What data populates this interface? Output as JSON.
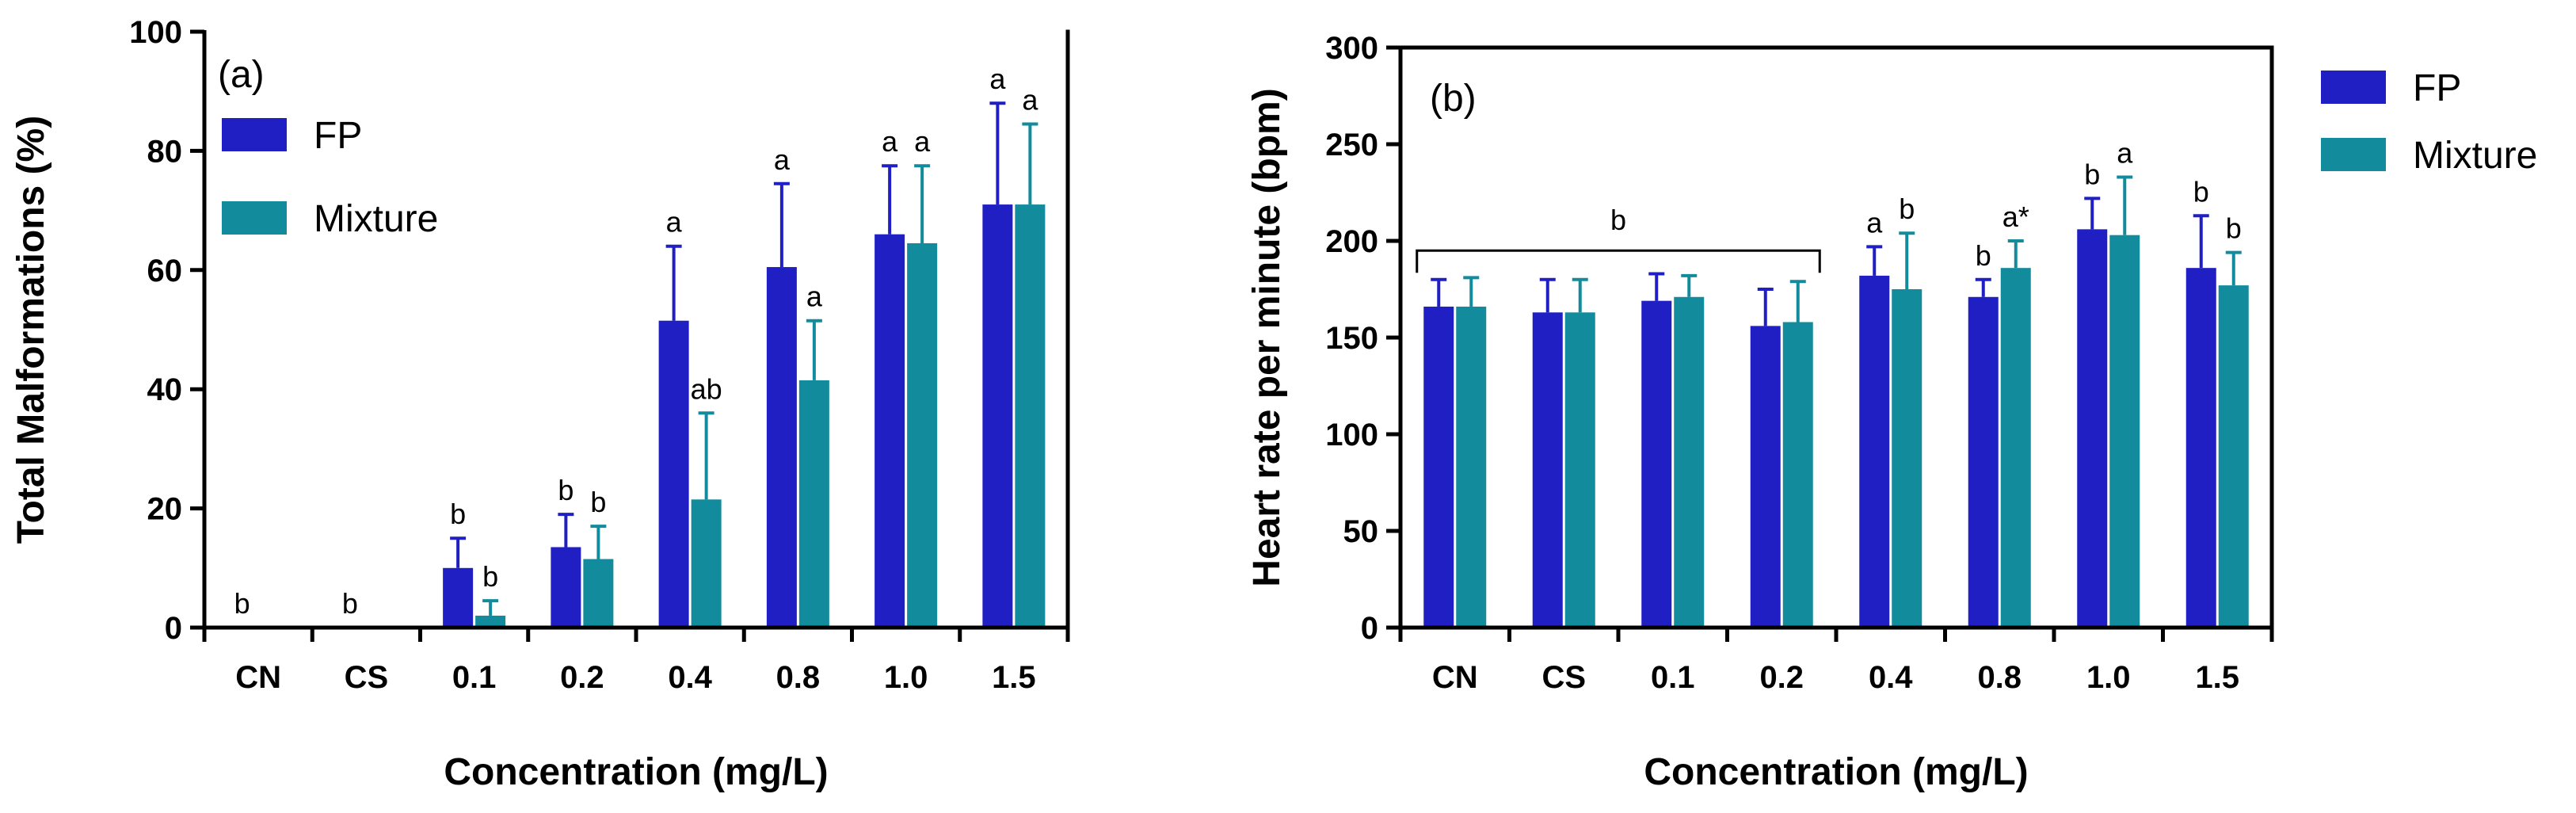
{
  "chart_data": [
    {
      "type": "bar",
      "panel_label": "(a)",
      "title": "",
      "xlabel": "Concentration (mg/L)",
      "ylabel": "Total Malformations (%)",
      "ylim": [
        0,
        100
      ],
      "yticks": [
        0,
        20,
        40,
        60,
        80,
        100
      ],
      "categories": [
        "CN",
        "CS",
        "0.1",
        "0.2",
        "0.4",
        "0.8",
        "1.0",
        "1.5"
      ],
      "legend": {
        "position": "top-left"
      },
      "series": [
        {
          "name": "FP",
          "color": "#1f1fc4",
          "values": [
            0,
            0,
            10,
            13.5,
            51.5,
            60.5,
            66,
            71
          ],
          "errors": [
            0,
            0,
            5,
            5.5,
            12.5,
            14,
            11.5,
            17
          ]
        },
        {
          "name": "Mixture",
          "color": "#128c9c",
          "values": [
            0,
            0,
            2,
            11.5,
            21.5,
            41.5,
            64.5,
            71
          ],
          "errors": [
            0,
            0,
            2.5,
            5.5,
            14.5,
            10,
            13,
            13.5
          ]
        }
      ],
      "annotations": [
        {
          "series": 0,
          "index": 0,
          "text": "b"
        },
        {
          "series": 0,
          "index": 1,
          "text": "b"
        },
        {
          "series": 0,
          "index": 2,
          "text": "b"
        },
        {
          "series": 1,
          "index": 2,
          "text": "b"
        },
        {
          "series": 0,
          "index": 3,
          "text": "b"
        },
        {
          "series": 1,
          "index": 3,
          "text": "b"
        },
        {
          "series": 0,
          "index": 4,
          "text": "a"
        },
        {
          "series": 1,
          "index": 4,
          "text": "ab"
        },
        {
          "series": 0,
          "index": 5,
          "text": "a"
        },
        {
          "series": 1,
          "index": 5,
          "text": "a"
        },
        {
          "series": 0,
          "index": 6,
          "text": "a"
        },
        {
          "series": 1,
          "index": 6,
          "text": "a"
        },
        {
          "series": 0,
          "index": 7,
          "text": "a"
        },
        {
          "series": 1,
          "index": 7,
          "text": "a"
        }
      ]
    },
    {
      "type": "bar",
      "panel_label": "(b)",
      "title": "",
      "xlabel": "Concentration (mg/L)",
      "ylabel": "Heart rate per minute (bpm)",
      "ylim": [
        0,
        300
      ],
      "yticks": [
        0,
        50,
        100,
        150,
        200,
        250,
        300
      ],
      "categories": [
        "CN",
        "CS",
        "0.1",
        "0.2",
        "0.4",
        "0.8",
        "1.0",
        "1.5"
      ],
      "legend": {
        "position": "outside-right"
      },
      "series": [
        {
          "name": "FP",
          "color": "#1f1fc4",
          "values": [
            166,
            163,
            169,
            156,
            182,
            171,
            206,
            186
          ],
          "errors": [
            14,
            17,
            14,
            19,
            15,
            9,
            16,
            27
          ]
        },
        {
          "name": "Mixture",
          "color": "#128c9c",
          "values": [
            166,
            163,
            171,
            158,
            175,
            186,
            203,
            177
          ],
          "errors": [
            15,
            17,
            11,
            21,
            29,
            14,
            30,
            17
          ]
        }
      ],
      "bracket": {
        "from_category": 0,
        "to_category": 3,
        "value": 195,
        "label": "b"
      },
      "annotations": [
        {
          "series": 0,
          "index": 4,
          "text": "a"
        },
        {
          "series": 1,
          "index": 4,
          "text": "b"
        },
        {
          "series": 0,
          "index": 5,
          "text": "b"
        },
        {
          "series": 1,
          "index": 5,
          "text": "a*"
        },
        {
          "series": 0,
          "index": 6,
          "text": "b"
        },
        {
          "series": 1,
          "index": 6,
          "text": "a"
        },
        {
          "series": 0,
          "index": 7,
          "text": "b"
        },
        {
          "series": 1,
          "index": 7,
          "text": "b"
        }
      ]
    }
  ]
}
